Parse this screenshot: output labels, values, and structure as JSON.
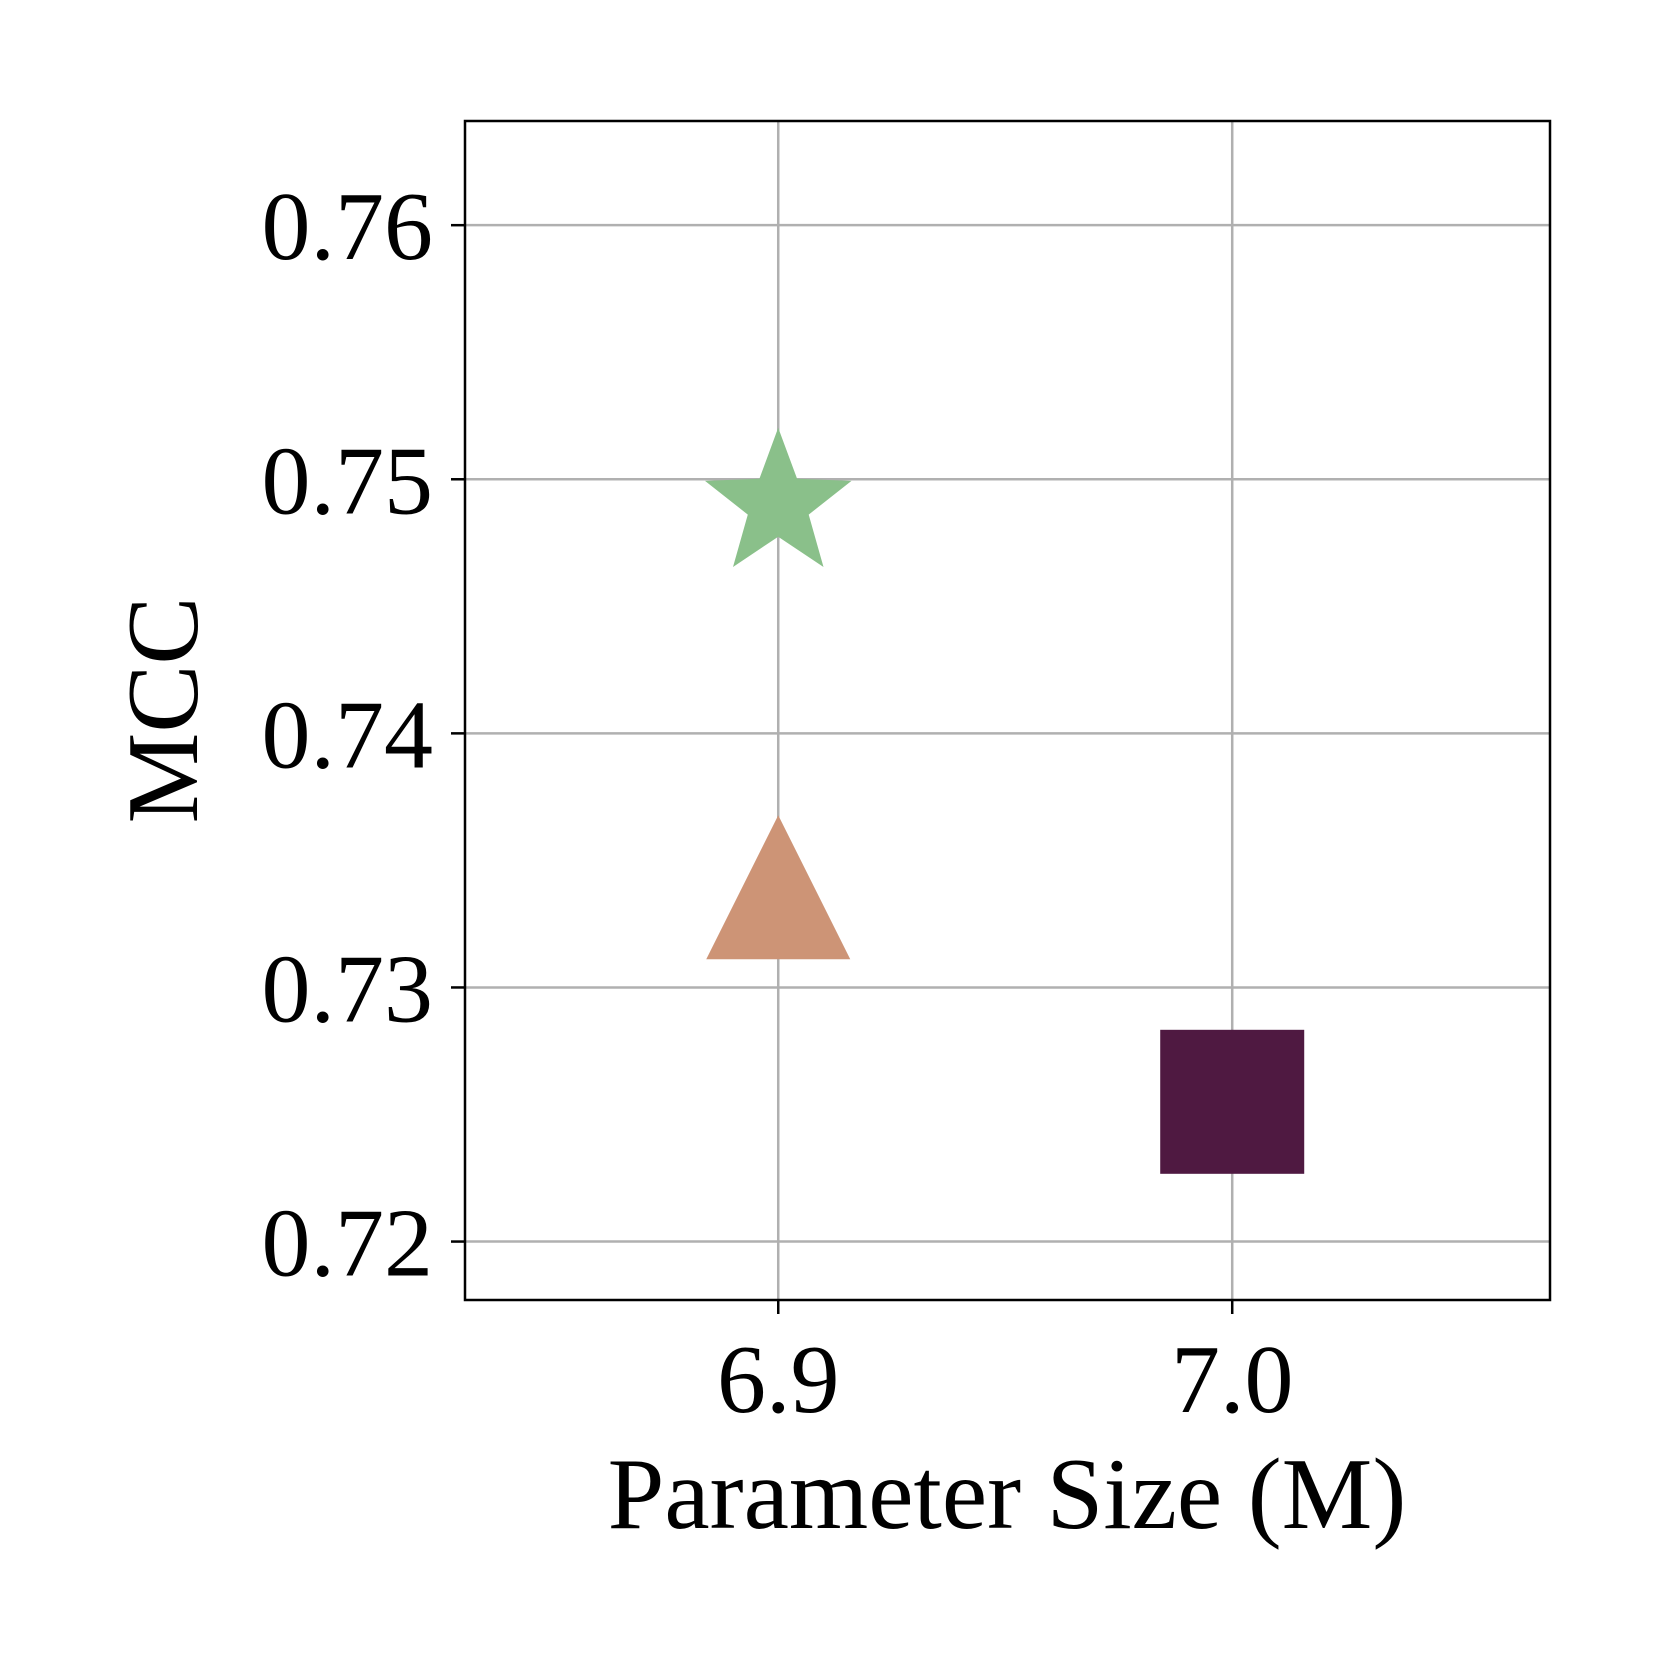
{
  "chart_data": {
    "type": "scatter",
    "xlabel": "Parameter Size (M)",
    "ylabel": "MCC",
    "xlim": [
      6.831,
      7.07
    ],
    "ylim": [
      0.7177,
      0.7641
    ],
    "x_ticks": [
      "6.9",
      "7.0"
    ],
    "y_ticks": [
      "0.72",
      "0.73",
      "0.74",
      "0.75",
      "0.76"
    ],
    "grid": true,
    "points": [
      {
        "marker": "star",
        "x": 6.9,
        "y": 0.749,
        "color": "#8ac08a"
      },
      {
        "marker": "triangle",
        "x": 6.9,
        "y": 0.733,
        "color": "#cd9476"
      },
      {
        "marker": "square",
        "x": 7.0,
        "y": 0.7255,
        "color": "#4f1941"
      }
    ]
  }
}
